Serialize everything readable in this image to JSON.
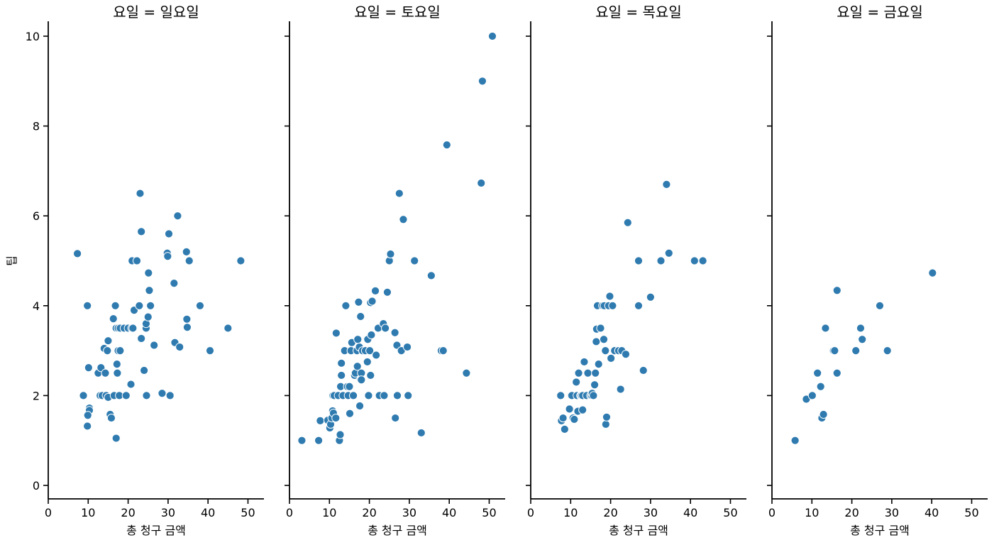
{
  "chart_data": {
    "type": "scatter",
    "xlabel": "총 청구 금액",
    "ylabel": "팁",
    "xlim": [
      0,
      54
    ],
    "ylim": [
      -0.3,
      10.3
    ],
    "xticks": [
      0,
      10,
      20,
      30,
      40,
      50
    ],
    "yticks": [
      0,
      2,
      4,
      6,
      8,
      10
    ],
    "grid": false,
    "color": "#2f7bb0",
    "panels": [
      {
        "title": "요일 = 일요일",
        "points": [
          [
            7.3,
            5.16
          ],
          [
            8.8,
            2.0
          ],
          [
            9.8,
            4.0
          ],
          [
            10.1,
            2.62
          ],
          [
            10.3,
            1.72
          ],
          [
            10.3,
            1.67
          ],
          [
            9.9,
            1.56
          ],
          [
            9.8,
            1.32
          ],
          [
            12.5,
            2.5
          ],
          [
            13.0,
            2.0
          ],
          [
            13.2,
            2.62
          ],
          [
            13.5,
            2.0
          ],
          [
            14.0,
            3.05
          ],
          [
            14.3,
            2.5
          ],
          [
            14.5,
            2.0
          ],
          [
            14.8,
            3.0
          ],
          [
            15.0,
            1.96
          ],
          [
            15.0,
            3.22
          ],
          [
            15.5,
            1.58
          ],
          [
            15.8,
            1.5
          ],
          [
            16.3,
            3.71
          ],
          [
            16.5,
            2.0
          ],
          [
            16.8,
            4.0
          ],
          [
            17.0,
            3.5
          ],
          [
            17.2,
            2.7
          ],
          [
            17.3,
            2.5
          ],
          [
            17.5,
            3.5
          ],
          [
            17.5,
            3.0
          ],
          [
            17.8,
            2.0
          ],
          [
            18.0,
            3.5
          ],
          [
            18.0,
            3.0
          ],
          [
            17.0,
            1.05
          ],
          [
            19.0,
            3.5
          ],
          [
            19.5,
            2.0
          ],
          [
            20.0,
            3.5
          ],
          [
            20.7,
            2.25
          ],
          [
            20.9,
            3.5
          ],
          [
            21.2,
            3.5
          ],
          [
            21.0,
            5.0
          ],
          [
            21.5,
            3.9
          ],
          [
            22.2,
            5.0
          ],
          [
            22.8,
            4.0
          ],
          [
            23.0,
            6.5
          ],
          [
            23.3,
            5.65
          ],
          [
            23.3,
            3.27
          ],
          [
            24.0,
            2.56
          ],
          [
            24.5,
            3.5
          ],
          [
            24.5,
            3.6
          ],
          [
            24.6,
            2.0
          ],
          [
            25.0,
            3.75
          ],
          [
            25.1,
            4.73
          ],
          [
            25.3,
            4.34
          ],
          [
            25.6,
            4.0
          ],
          [
            26.5,
            3.12
          ],
          [
            28.5,
            2.05
          ],
          [
            29.8,
            5.17
          ],
          [
            29.9,
            5.1
          ],
          [
            30.2,
            5.6
          ],
          [
            30.5,
            2.0
          ],
          [
            31.5,
            4.5
          ],
          [
            31.7,
            3.18
          ],
          [
            32.4,
            6.0
          ],
          [
            32.9,
            3.08
          ],
          [
            34.6,
            5.2
          ],
          [
            34.7,
            3.7
          ],
          [
            34.8,
            3.52
          ],
          [
            35.3,
            5.0
          ],
          [
            38.0,
            4.0
          ],
          [
            40.5,
            3.0
          ],
          [
            45.0,
            3.5
          ],
          [
            48.2,
            5.0
          ]
        ]
      },
      {
        "title": "요일 = 토요일",
        "points": [
          [
            3.1,
            1.0
          ],
          [
            7.3,
            1.0
          ],
          [
            7.7,
            1.44
          ],
          [
            9.6,
            1.45
          ],
          [
            10.1,
            1.28
          ],
          [
            10.3,
            1.36
          ],
          [
            10.6,
            1.5
          ],
          [
            10.8,
            1.66
          ],
          [
            10.9,
            2.0
          ],
          [
            11.0,
            1.61
          ],
          [
            11.2,
            2.0
          ],
          [
            11.6,
            1.5
          ],
          [
            11.7,
            3.39
          ],
          [
            12.2,
            2.0
          ],
          [
            12.5,
            1.0
          ],
          [
            12.7,
            1.13
          ],
          [
            12.8,
            2.2
          ],
          [
            13.0,
            2.72
          ],
          [
            13.0,
            2.45
          ],
          [
            13.4,
            2.0
          ],
          [
            13.8,
            3.0
          ],
          [
            14.1,
            4.0
          ],
          [
            14.5,
            2.2
          ],
          [
            14.7,
            2.0
          ],
          [
            15.0,
            2.2
          ],
          [
            15.1,
            1.6
          ],
          [
            15.4,
            3.0
          ],
          [
            15.6,
            3.18
          ],
          [
            16.0,
            2.0
          ],
          [
            16.3,
            2.45
          ],
          [
            16.5,
            2.5
          ],
          [
            16.9,
            3.0
          ],
          [
            17.0,
            2.65
          ],
          [
            17.1,
            3.25
          ],
          [
            17.3,
            4.08
          ],
          [
            17.5,
            3.08
          ],
          [
            17.6,
            1.77
          ],
          [
            17.8,
            2.35
          ],
          [
            17.8,
            3.76
          ],
          [
            18.0,
            2.5
          ],
          [
            18.0,
            2.35
          ],
          [
            18.3,
            3.0
          ],
          [
            19.0,
            3.0
          ],
          [
            19.5,
            2.75
          ],
          [
            19.6,
            3.25
          ],
          [
            19.8,
            2.0
          ],
          [
            20.1,
            3.0
          ],
          [
            20.3,
            2.45
          ],
          [
            20.3,
            4.07
          ],
          [
            20.5,
            3.35
          ],
          [
            20.7,
            4.1
          ],
          [
            21.5,
            4.33
          ],
          [
            21.7,
            2.9
          ],
          [
            22.2,
            3.5
          ],
          [
            22.5,
            2.0
          ],
          [
            23.5,
            3.6
          ],
          [
            23.7,
            2.0
          ],
          [
            24.0,
            3.5
          ],
          [
            24.5,
            4.3
          ],
          [
            25.0,
            5.0
          ],
          [
            25.3,
            5.15
          ],
          [
            26.4,
            3.4
          ],
          [
            26.5,
            1.5
          ],
          [
            26.9,
            3.12
          ],
          [
            27.0,
            2.0
          ],
          [
            27.5,
            6.5
          ],
          [
            28.0,
            3.0
          ],
          [
            28.5,
            5.92
          ],
          [
            29.5,
            3.08
          ],
          [
            29.7,
            2.0
          ],
          [
            31.3,
            5.0
          ],
          [
            33.0,
            1.17
          ],
          [
            35.5,
            4.67
          ],
          [
            38.0,
            3.0
          ],
          [
            38.5,
            3.0
          ],
          [
            39.4,
            7.58
          ],
          [
            44.3,
            2.5
          ],
          [
            48.0,
            6.73
          ],
          [
            48.3,
            9.0
          ],
          [
            50.8,
            10.0
          ]
        ]
      },
      {
        "title": "요일 = 목요일",
        "points": [
          [
            7.5,
            2.0
          ],
          [
            7.7,
            1.44
          ],
          [
            8.1,
            1.5
          ],
          [
            8.5,
            1.25
          ],
          [
            9.7,
            1.7
          ],
          [
            10.1,
            2.0
          ],
          [
            10.3,
            2.0
          ],
          [
            10.6,
            1.5
          ],
          [
            10.9,
            1.47
          ],
          [
            11.4,
            2.3
          ],
          [
            11.6,
            2.0
          ],
          [
            11.8,
            1.65
          ],
          [
            12.0,
            2.5
          ],
          [
            12.5,
            2.0
          ],
          [
            12.7,
            2.0
          ],
          [
            13.0,
            2.0
          ],
          [
            13.0,
            1.68
          ],
          [
            13.4,
            2.75
          ],
          [
            14.0,
            2.0
          ],
          [
            14.3,
            2.5
          ],
          [
            15.0,
            2.0
          ],
          [
            15.3,
            2.0
          ],
          [
            15.4,
            2.05
          ],
          [
            15.7,
            2.0
          ],
          [
            16.0,
            2.24
          ],
          [
            16.2,
            2.5
          ],
          [
            16.4,
            3.2
          ],
          [
            16.5,
            3.48
          ],
          [
            16.7,
            4.0
          ],
          [
            17.0,
            2.7
          ],
          [
            17.5,
            3.5
          ],
          [
            18.0,
            4.0
          ],
          [
            18.3,
            3.25
          ],
          [
            18.4,
            4.0
          ],
          [
            18.7,
            3.0
          ],
          [
            18.8,
            1.36
          ],
          [
            19.0,
            1.52
          ],
          [
            19.5,
            4.0
          ],
          [
            19.8,
            4.21
          ],
          [
            20.1,
            2.83
          ],
          [
            20.5,
            4.0
          ],
          [
            21.0,
            3.0
          ],
          [
            22.0,
            3.0
          ],
          [
            22.5,
            2.14
          ],
          [
            22.8,
            3.0
          ],
          [
            23.8,
            2.92
          ],
          [
            24.3,
            5.85
          ],
          [
            27.0,
            5.0
          ],
          [
            27.0,
            4.0
          ],
          [
            28.2,
            2.56
          ],
          [
            30.0,
            4.19
          ],
          [
            32.6,
            5.0
          ],
          [
            34.0,
            6.7
          ],
          [
            34.6,
            5.17
          ],
          [
            41.0,
            5.0
          ],
          [
            43.1,
            5.0
          ]
        ]
      },
      {
        "title": "요일 = 금요일",
        "points": [
          [
            5.8,
            1.0
          ],
          [
            8.6,
            1.92
          ],
          [
            10.1,
            2.0
          ],
          [
            11.4,
            2.5
          ],
          [
            12.2,
            2.2
          ],
          [
            12.5,
            1.5
          ],
          [
            12.9,
            1.58
          ],
          [
            13.4,
            3.5
          ],
          [
            15.4,
            3.0
          ],
          [
            15.7,
            3.0
          ],
          [
            16.3,
            2.5
          ],
          [
            16.3,
            4.34
          ],
          [
            21.0,
            3.0
          ],
          [
            22.2,
            3.5
          ],
          [
            22.6,
            3.25
          ],
          [
            27.0,
            4.0
          ],
          [
            28.9,
            3.0
          ],
          [
            40.2,
            4.73
          ]
        ]
      }
    ]
  }
}
